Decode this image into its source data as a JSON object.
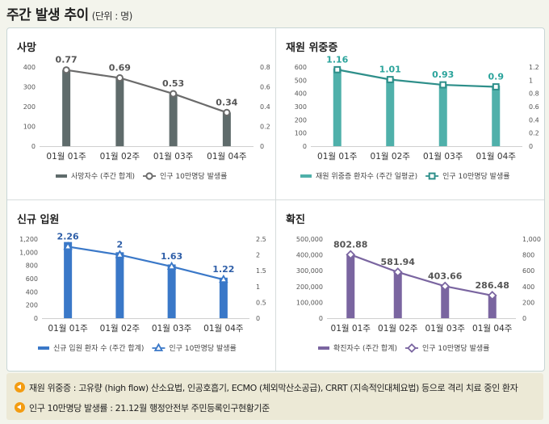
{
  "header": {
    "title": "주간 발생 추이",
    "unit": "(단위 : 명)"
  },
  "chart_data": [
    {
      "type": "bar",
      "title": "사망",
      "categories": [
        "01월 01주",
        "01월 02주",
        "01월 03주",
        "01월 04주"
      ],
      "series": [
        {
          "name": "사망자수 (주간 합계)",
          "type": "bar",
          "values": [
            385,
            345,
            265,
            170
          ],
          "color": "#5f6b6b",
          "axis": "left"
        },
        {
          "name": "인구 10만명당 발생률",
          "type": "line",
          "values": [
            0.77,
            0.69,
            0.53,
            0.34
          ],
          "labels": [
            "0.77",
            "0.69",
            "0.53",
            "0.34"
          ],
          "color": "#6b6b6b",
          "marker": "circle",
          "axis": "right"
        }
      ],
      "ylim": [
        0,
        400
      ],
      "yticks": [
        "0",
        "100",
        "200",
        "300",
        "400"
      ],
      "y2lim": [
        0,
        0.8
      ],
      "y2ticks": [
        "0",
        "0.2",
        "0.4",
        "0.6",
        "0.8"
      ],
      "label_color": "#555555"
    },
    {
      "type": "bar",
      "title": "재원 위중증",
      "categories": [
        "01월 01주",
        "01월 02주",
        "01월 03주",
        "01월 04주"
      ],
      "series": [
        {
          "name": "재원 위중증 환자수 (주간 일평균)",
          "type": "bar",
          "values": [
            590,
            515,
            470,
            460
          ],
          "color": "#4fb0aa",
          "axis": "left"
        },
        {
          "name": "인구 10만명당 발생률",
          "type": "line",
          "values": [
            1.16,
            1.01,
            0.93,
            0.9
          ],
          "labels": [
            "1.16",
            "1.01",
            "0.93",
            "0.9"
          ],
          "color": "#2e8f8a",
          "marker": "square",
          "axis": "right"
        }
      ],
      "ylim": [
        0,
        600
      ],
      "yticks": [
        "0",
        "100",
        "200",
        "300",
        "400",
        "500",
        "600"
      ],
      "y2lim": [
        0,
        1.2
      ],
      "y2ticks": [
        "0",
        "0.2",
        "0.4",
        "0.6",
        "0.8",
        "1",
        "1.2"
      ],
      "label_color": "#2aa39b"
    },
    {
      "type": "bar",
      "title": "신규 입원",
      "categories": [
        "01월 01주",
        "01월 02주",
        "01월 03주",
        "01월 04주"
      ],
      "series": [
        {
          "name": "신규 입원 환자 수 (주간 합계)",
          "type": "bar",
          "values": [
            1155,
            1000,
            815,
            615
          ],
          "color": "#3a78c8",
          "axis": "left"
        },
        {
          "name": "인구 10만명당 발생률",
          "type": "line",
          "values": [
            2.26,
            2,
            1.63,
            1.22
          ],
          "labels": [
            "2.26",
            "2",
            "1.63",
            "1.22"
          ],
          "color": "#3a78c8",
          "marker": "triangle",
          "axis": "right"
        }
      ],
      "ylim": [
        0,
        1200
      ],
      "yticks": [
        "0",
        "200",
        "400",
        "600",
        "800",
        "1,000",
        "1,200"
      ],
      "y2lim": [
        0,
        2.5
      ],
      "y2ticks": [
        "0",
        "0.5",
        "1",
        "1.5",
        "2",
        "2.5"
      ],
      "label_color": "#2f5fa8"
    },
    {
      "type": "bar",
      "title": "확진",
      "categories": [
        "01월 01주",
        "01월 02주",
        "01월 03주",
        "01월 04주"
      ],
      "series": [
        {
          "name": "확진자수 (주간 합계)",
          "type": "bar",
          "values": [
            405000,
            295000,
            205000,
            145000
          ],
          "color": "#7a65a0",
          "axis": "left"
        },
        {
          "name": "인구 10만명당 발생률",
          "type": "line",
          "values": [
            802.88,
            581.94,
            403.66,
            286.48
          ],
          "labels": [
            "802.88",
            "581.94",
            "403.66",
            "286.48"
          ],
          "color": "#7a65a0",
          "marker": "diamond",
          "axis": "right"
        }
      ],
      "ylim": [
        0,
        500000
      ],
      "yticks": [
        "0",
        "100,000",
        "200,000",
        "300,000",
        "400,000",
        "500,000"
      ],
      "y2lim": [
        0,
        1000
      ],
      "y2ticks": [
        "0",
        "200",
        "400",
        "600",
        "800",
        "1,000"
      ],
      "label_color": "#555555"
    }
  ],
  "notes": [
    "재원 위중증 : 고유량 (high flow) 산소요법, 인공호흡기, ECMO (체외막산소공급), CRRT (지속적인대체요법) 등으로 격리 치료 중인 환자",
    "인구 10만명당 발생률 : 21.12월 행정안전부 주민등록인구현황기준"
  ]
}
